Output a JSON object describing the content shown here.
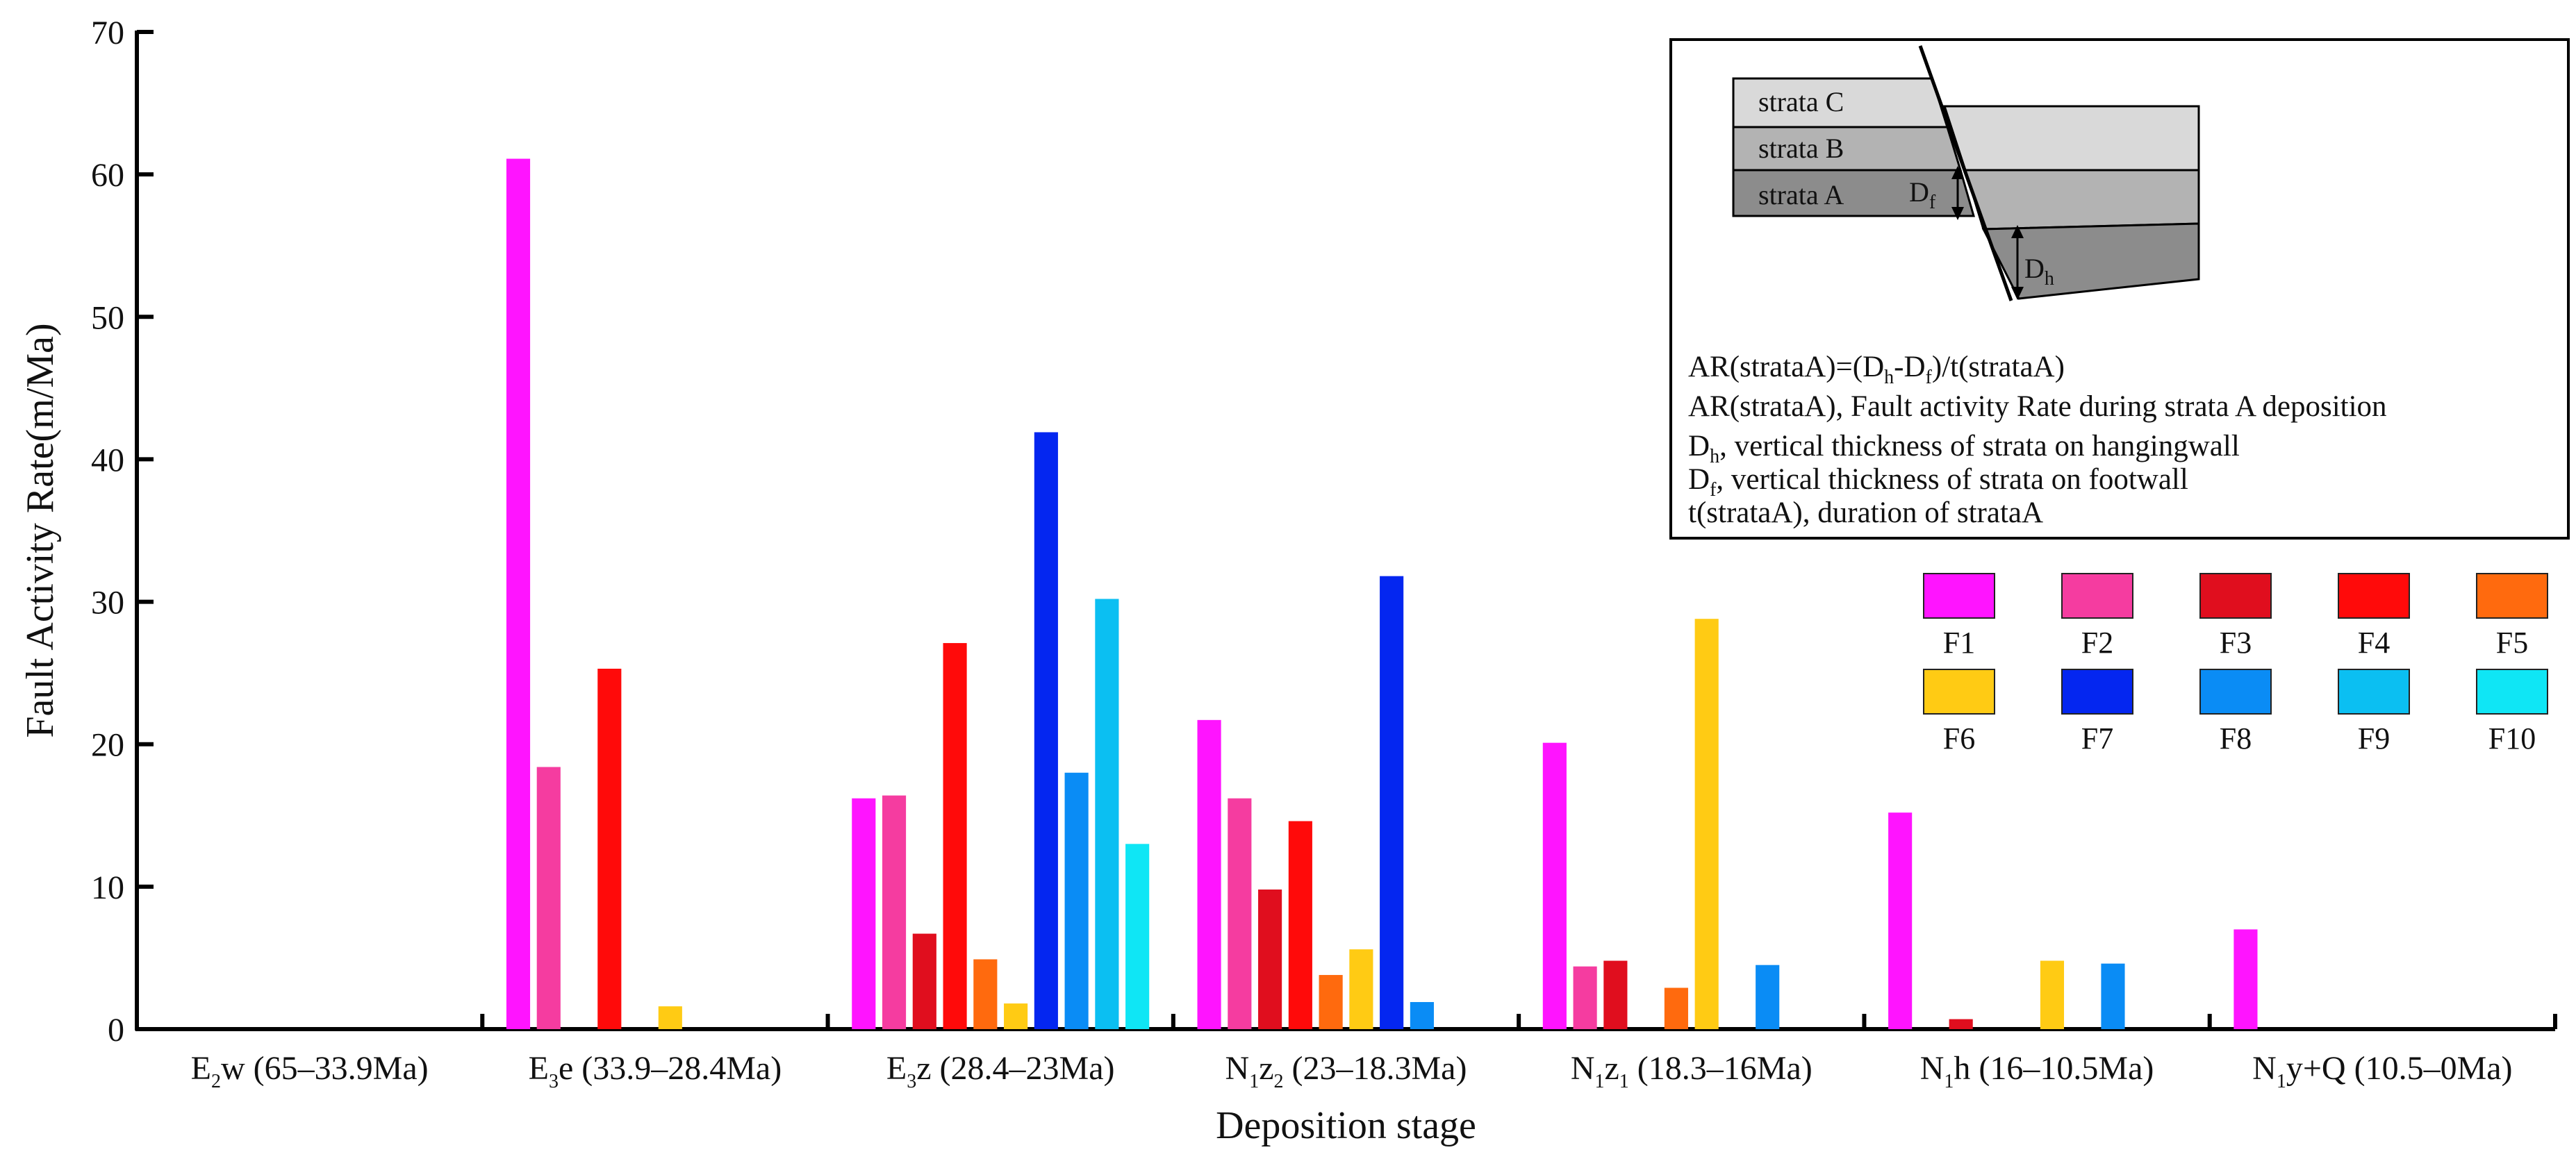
{
  "chart_data": {
    "type": "bar",
    "ylabel": "Fault Activity Rate(m/Ma)",
    "xlabel": "Deposition stage",
    "ylim": [
      0,
      70
    ],
    "yticks": [
      0,
      10,
      20,
      30,
      40,
      50,
      60,
      70
    ],
    "categories": [
      {
        "base": "E",
        "sub": "2",
        "rest": "w (65–33.9Ma)"
      },
      {
        "base": "E",
        "sub": "3",
        "rest": "e (33.9–28.4Ma)"
      },
      {
        "base": "E",
        "sub": "3",
        "rest": "z (28.4–23Ma)"
      },
      {
        "base": "N",
        "sub": "1",
        "rest": "z",
        "sub2": "2",
        "rest2": " (23–18.3Ma)"
      },
      {
        "base": "N",
        "sub": "1",
        "rest": "z",
        "sub2": "1",
        "rest2": " (18.3–16Ma)"
      },
      {
        "base": "N",
        "sub": "1",
        "rest": "h (16–10.5Ma)"
      },
      {
        "base": "N",
        "sub": "1",
        "rest": "y+Q (10.5–0Ma)"
      }
    ],
    "series": [
      {
        "name": "F1",
        "color": "#FF14FF",
        "values": [
          0,
          61.1,
          16.2,
          21.7,
          20.1,
          15.2,
          7.0
        ]
      },
      {
        "name": "F2",
        "color": "#F53CA0",
        "values": [
          0,
          18.4,
          16.4,
          16.2,
          4.4,
          0,
          0
        ]
      },
      {
        "name": "F3",
        "color": "#E00E1E",
        "values": [
          0,
          0,
          6.7,
          9.8,
          4.8,
          0.7,
          0
        ]
      },
      {
        "name": "F4",
        "color": "#FF0A0A",
        "values": [
          0,
          25.3,
          27.1,
          14.6,
          0,
          0,
          0
        ]
      },
      {
        "name": "F5",
        "color": "#FF6A0E",
        "values": [
          0,
          0,
          4.9,
          3.8,
          2.9,
          0,
          0
        ]
      },
      {
        "name": "F6",
        "color": "#FFCB14",
        "values": [
          0,
          1.6,
          1.8,
          5.6,
          28.8,
          4.8,
          0
        ]
      },
      {
        "name": "F7",
        "color": "#0426F0",
        "values": [
          0,
          0,
          41.9,
          31.8,
          0,
          0,
          0
        ]
      },
      {
        "name": "F8",
        "color": "#0A8CF5",
        "values": [
          0,
          0,
          18.0,
          1.9,
          4.5,
          4.6,
          0
        ]
      },
      {
        "name": "F9",
        "color": "#0BBFF2",
        "values": [
          0,
          0,
          30.2,
          0,
          0,
          0,
          0
        ]
      },
      {
        "name": "F10",
        "color": "#0FE6F5",
        "values": [
          0,
          0,
          13.0,
          0,
          0,
          0,
          0
        ]
      }
    ]
  },
  "inset": {
    "strata": [
      "strata C",
      "strata B",
      "strata A"
    ],
    "df": {
      "base": "D",
      "sub": "f"
    },
    "dh": {
      "base": "D",
      "sub": "h"
    },
    "lines": [
      [
        {
          "t": "AR(strataA)=(D"
        },
        {
          "t": "h",
          "s": 1
        },
        {
          "t": "-D"
        },
        {
          "t": "f",
          "s": 1
        },
        {
          "t": ")/t(strataA)"
        }
      ],
      [
        {
          "t": "AR(strataA), Fault activity Rate during strata A deposition"
        }
      ],
      [
        {
          "t": "D"
        },
        {
          "t": "h",
          "s": 1
        },
        {
          "t": ", vertical thickness of strata on hangingwall"
        }
      ],
      [
        {
          "t": "D"
        },
        {
          "t": "f",
          "s": 1
        },
        {
          "t": ", vertical thickness of strata on footwall"
        }
      ],
      [
        {
          "t": "t(strataA), duration of strataA"
        }
      ]
    ]
  }
}
